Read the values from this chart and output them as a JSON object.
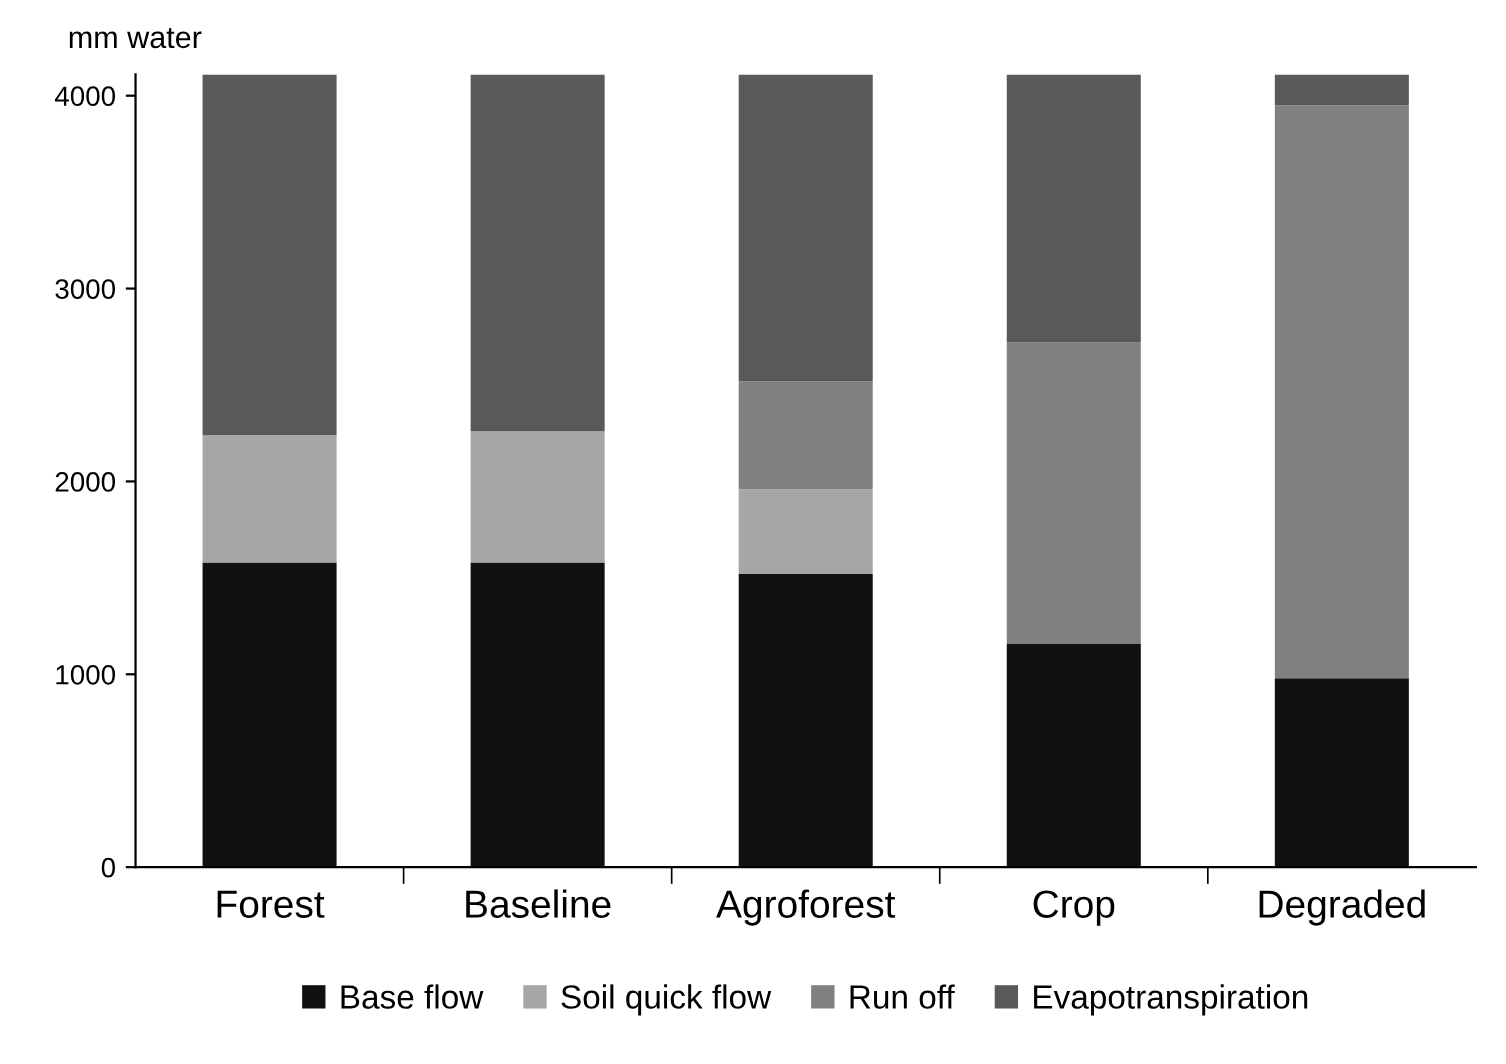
{
  "chart_data": {
    "type": "bar",
    "stacked": true,
    "ylabel": "mm water",
    "categories": [
      "Forest",
      "Baseline",
      "Agroforest",
      "Crop",
      "Degraded"
    ],
    "series": [
      {
        "name": "Base flow",
        "color": "#111111",
        "values": [
          1580,
          1580,
          1520,
          1160,
          980
        ]
      },
      {
        "name": "Soil quick flow",
        "color": "#a6a6a6",
        "values": [
          660,
          680,
          440,
          0,
          0
        ]
      },
      {
        "name": "Run off",
        "color": "#808080",
        "values": [
          0,
          0,
          560,
          1560,
          2970
        ]
      },
      {
        "name": "Evapotranspiration",
        "color": "#595959",
        "values": [
          1870,
          1850,
          1590,
          1390,
          160
        ]
      }
    ],
    "ylim": [
      0,
      4110
    ],
    "yticks": [
      0,
      1000,
      2000,
      3000,
      4000
    ],
    "grid": false,
    "legend": "bottom"
  }
}
